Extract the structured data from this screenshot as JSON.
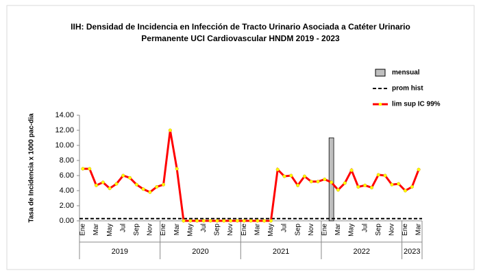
{
  "chart_data": {
    "type": "line",
    "title": [
      "IIH: Densidad de Incidencia en  Infección de Tracto Urinario Asociada a Catéter Urinario",
      "Permanente UCI Cardiovascular HNDM 2019 - 2023"
    ],
    "y_label": "Tasa de Incidencia x 1000 pac-dia",
    "categories": [
      "Ene",
      null,
      "Mar",
      null,
      "May",
      null,
      "Jul",
      null,
      "Sep",
      null,
      "Nov",
      null,
      "Ene",
      null,
      "Mar",
      null,
      "May",
      null,
      "Jul",
      null,
      "Sep",
      null,
      "Nov",
      null,
      "Ene",
      null,
      "Mar",
      null,
      "May",
      null,
      "Jul",
      null,
      "Sep",
      null,
      "Nov",
      null,
      "Ene",
      null,
      "Mar",
      null,
      "May",
      null,
      "Jul",
      null,
      "Sep",
      null,
      "Nov",
      null,
      "Ene",
      null,
      "Mar"
    ],
    "year_groups": [
      {
        "label": "2019",
        "months": 12
      },
      {
        "label": "2020",
        "months": 12
      },
      {
        "label": "2021",
        "months": 12
      },
      {
        "label": "2022",
        "months": 12
      },
      {
        "label": "2023",
        "months": 3
      }
    ],
    "series": [
      {
        "name": "mensual",
        "kind": "bar",
        "color": "#bfbfbf",
        "values": [
          null,
          null,
          null,
          null,
          null,
          null,
          null,
          null,
          null,
          null,
          null,
          null,
          null,
          null,
          null,
          null,
          null,
          null,
          null,
          null,
          null,
          null,
          null,
          null,
          null,
          null,
          null,
          null,
          null,
          null,
          null,
          null,
          null,
          null,
          null,
          null,
          null,
          11,
          null,
          null,
          null,
          null,
          null,
          null,
          null,
          null,
          null,
          null,
          null,
          null,
          null
        ]
      },
      {
        "name": "lim sup IC 99%",
        "kind": "line",
        "color": "#ff0000",
        "marker_color": "#ffff00",
        "values": [
          6.9,
          6.9,
          4.7,
          5.1,
          4.3,
          4.9,
          6.0,
          5.7,
          4.8,
          4.2,
          3.8,
          4.5,
          4.8,
          12.0,
          6.9,
          0,
          0,
          0,
          0,
          0,
          0,
          0,
          0,
          0,
          0,
          0,
          0,
          0,
          0,
          6.8,
          5.9,
          6.0,
          4.7,
          5.9,
          5.2,
          5.2,
          5.5,
          5.1,
          4.1,
          5.0,
          6.7,
          4.5,
          4.7,
          4.4,
          6.1,
          6.0,
          4.8,
          4.9,
          4.0,
          4.5,
          6.8
        ]
      }
    ],
    "hline": {
      "name": "prom hist",
      "value": 0.3,
      "color": "#000000"
    },
    "ylim": [
      0,
      14
    ],
    "yticks": [
      {
        "value": 0,
        "label": "0.00"
      },
      {
        "value": 2,
        "label": "2.00"
      },
      {
        "value": 4,
        "label": "4.00"
      },
      {
        "value": 6,
        "label": "6.00"
      },
      {
        "value": 8,
        "label": "8.00"
      },
      {
        "value": 10,
        "label": "10.00"
      },
      {
        "value": 12,
        "label": "12.00"
      },
      {
        "value": 14,
        "label": "14.00"
      }
    ]
  }
}
